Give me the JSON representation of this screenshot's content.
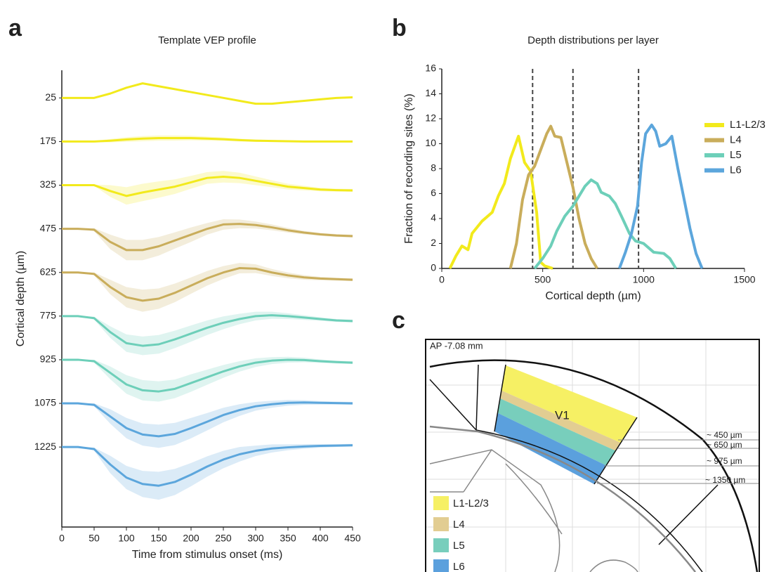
{
  "chart_data": [
    {
      "type": "line",
      "panel_label": "a",
      "title": "Template VEP profile",
      "x_label": "Time from stimulus onset (ms)",
      "y_label": "Cortical depth (µm)",
      "x": [
        0,
        25,
        50,
        75,
        100,
        125,
        150,
        175,
        200,
        225,
        250,
        275,
        300,
        325,
        350,
        375,
        400,
        425,
        450
      ],
      "xlim": [
        0,
        450
      ],
      "xticks": [
        0,
        50,
        100,
        150,
        200,
        250,
        300,
        350,
        400,
        450
      ],
      "ylim": [
        -70,
        1500
      ],
      "y_inverted": true,
      "yticks": [
        25,
        175,
        325,
        475,
        625,
        775,
        925,
        1075,
        1225
      ],
      "series": [
        {
          "color": "#f2ea1c",
          "values": [
            25,
            25,
            25,
            10,
            -10,
            -25,
            -15,
            -5,
            5,
            15,
            25,
            35,
            45,
            45,
            40,
            35,
            30,
            25,
            23
          ],
          "spread": [
            0,
            0,
            0,
            2,
            3,
            3,
            3,
            3,
            3,
            3,
            3,
            3,
            3,
            3,
            3,
            3,
            3,
            3,
            3
          ]
        },
        {
          "color": "#f2ea1c",
          "values": [
            175,
            175,
            175,
            172,
            168,
            165,
            163,
            163,
            163,
            165,
            167,
            170,
            172,
            173,
            174,
            175,
            175,
            175,
            175
          ],
          "spread": [
            0,
            0,
            2,
            6,
            8,
            9,
            9,
            9,
            8,
            7,
            6,
            5,
            4,
            3,
            3,
            2,
            2,
            2,
            2
          ]
        },
        {
          "color": "#f2ea1c",
          "values": [
            325,
            325,
            325,
            345,
            362,
            350,
            340,
            330,
            315,
            300,
            296,
            300,
            310,
            320,
            330,
            335,
            340,
            342,
            343
          ],
          "spread": [
            0,
            0,
            2,
            20,
            30,
            30,
            28,
            25,
            22,
            20,
            20,
            18,
            15,
            12,
            10,
            8,
            6,
            5,
            5
          ]
        },
        {
          "color": "#c9ad5b",
          "values": [
            475,
            475,
            478,
            520,
            548,
            548,
            535,
            515,
            495,
            475,
            460,
            458,
            462,
            470,
            480,
            488,
            494,
            498,
            500
          ],
          "spread": [
            0,
            0,
            5,
            25,
            35,
            35,
            32,
            28,
            25,
            20,
            18,
            15,
            12,
            10,
            8,
            6,
            5,
            5,
            5
          ]
        },
        {
          "color": "#c9ad5b",
          "values": [
            625,
            625,
            630,
            675,
            710,
            722,
            715,
            695,
            670,
            645,
            625,
            610,
            612,
            625,
            635,
            642,
            646,
            648,
            650
          ],
          "spread": [
            0,
            0,
            5,
            25,
            35,
            38,
            35,
            32,
            28,
            25,
            22,
            18,
            15,
            12,
            10,
            8,
            6,
            5,
            5
          ]
        },
        {
          "color": "#6dcfb9",
          "values": [
            775,
            775,
            782,
            830,
            868,
            877,
            872,
            855,
            835,
            815,
            798,
            785,
            775,
            772,
            775,
            780,
            785,
            790,
            792
          ],
          "spread": [
            0,
            0,
            5,
            20,
            30,
            32,
            32,
            30,
            28,
            25,
            22,
            18,
            15,
            12,
            10,
            8,
            6,
            5,
            5
          ]
        },
        {
          "color": "#6dcfb9",
          "values": [
            925,
            925,
            930,
            970,
            1010,
            1030,
            1034,
            1025,
            1005,
            985,
            965,
            948,
            935,
            928,
            925,
            926,
            930,
            933,
            935
          ],
          "spread": [
            0,
            0,
            5,
            22,
            32,
            35,
            35,
            32,
            30,
            26,
            22,
            18,
            15,
            12,
            10,
            8,
            6,
            5,
            5
          ]
        },
        {
          "color": "#5ca6dc",
          "values": [
            1075,
            1075,
            1080,
            1120,
            1160,
            1182,
            1188,
            1180,
            1160,
            1138,
            1115,
            1098,
            1085,
            1078,
            1073,
            1072,
            1073,
            1074,
            1075
          ],
          "spread": [
            0,
            0,
            5,
            25,
            35,
            38,
            40,
            38,
            35,
            30,
            25,
            20,
            15,
            12,
            10,
            8,
            6,
            5,
            5
          ]
        },
        {
          "color": "#5ca6dc",
          "values": [
            1225,
            1225,
            1232,
            1285,
            1330,
            1352,
            1358,
            1345,
            1320,
            1292,
            1268,
            1250,
            1238,
            1230,
            1226,
            1223,
            1221,
            1220,
            1219
          ],
          "spread": [
            0,
            0,
            5,
            30,
            40,
            45,
            48,
            45,
            40,
            35,
            30,
            25,
            18,
            14,
            10,
            8,
            6,
            5,
            5
          ]
        }
      ]
    },
    {
      "type": "line",
      "panel_label": "b",
      "title": "Depth distributions per layer",
      "x_label": "Cortical depth (µm)",
      "y_label": "Fraction of recording sites (%)",
      "xlim": [
        0,
        1500
      ],
      "xticks": [
        0,
        500,
        1000,
        1500
      ],
      "ylim": [
        0,
        16
      ],
      "yticks": [
        0,
        2,
        4,
        6,
        8,
        10,
        12,
        14,
        16
      ],
      "vlines": [
        450,
        650,
        975
      ],
      "legend": "right",
      "series": [
        {
          "name": "L1-L2/3",
          "color": "#f2ea1c",
          "x": [
            40,
            70,
            100,
            130,
            150,
            200,
            250,
            280,
            310,
            340,
            380,
            410,
            440,
            470,
            490,
            510,
            550
          ],
          "values": [
            0,
            1,
            1.8,
            1.5,
            2.8,
            3.8,
            4.5,
            5.8,
            6.8,
            8.8,
            10.6,
            8.5,
            7.8,
            4.5,
            0.5,
            0.2,
            0
          ]
        },
        {
          "name": "L4",
          "color": "#c9ad5b",
          "x": [
            340,
            370,
            400,
            430,
            460,
            490,
            520,
            540,
            560,
            590,
            620,
            650,
            680,
            710,
            740,
            770
          ],
          "values": [
            0,
            2,
            5.5,
            7.5,
            8.2,
            9.5,
            10.8,
            11.4,
            10.6,
            10.5,
            8.5,
            6.5,
            4,
            2,
            0.8,
            0
          ]
        },
        {
          "name": "L5",
          "color": "#6dcfb9",
          "x": [
            460,
            500,
            540,
            570,
            610,
            650,
            680,
            710,
            740,
            770,
            790,
            830,
            860,
            890,
            930,
            960,
            1000,
            1050,
            1100,
            1130,
            1160
          ],
          "values": [
            0,
            0.8,
            1.8,
            3,
            4.2,
            5,
            5.8,
            6.6,
            7.1,
            6.8,
            6.1,
            5.8,
            5.2,
            4.2,
            2.8,
            2.2,
            2,
            1.3,
            1.2,
            0.8,
            0
          ]
        },
        {
          "name": "L6",
          "color": "#5ca6dc",
          "x": [
            880,
            910,
            940,
            970,
            990,
            1010,
            1040,
            1060,
            1080,
            1110,
            1140,
            1170,
            1200,
            1230,
            1260,
            1290
          ],
          "values": [
            0,
            1.3,
            2.8,
            5,
            8.5,
            10.8,
            11.5,
            11,
            9.8,
            10,
            10.6,
            8,
            5.6,
            3.2,
            1.2,
            0
          ]
        }
      ]
    }
  ],
  "diagram": {
    "panel_label": "c",
    "section_label": "AP -7.08 mm",
    "region_label": "V1",
    "depth_labels": [
      "~ 450 µm",
      "~ 650 µm",
      "~ 975 µm",
      "~ 1350 µm"
    ],
    "legend": [
      {
        "name": "L1-L2/3",
        "color": "#f6f064"
      },
      {
        "name": "L4",
        "color": "#e2cd92"
      },
      {
        "name": "L5",
        "color": "#78cebc"
      },
      {
        "name": "L6",
        "color": "#5ba0dd"
      }
    ]
  }
}
